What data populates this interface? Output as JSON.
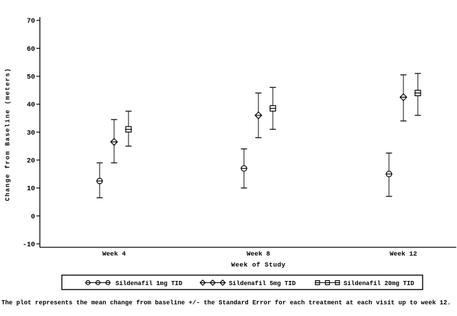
{
  "caption": "The plot represents the mean change from baseline +/- the Standard Error for each treatment at each visit up to week 12.",
  "colors": {
    "background": "#ffffff",
    "axis": "#000000",
    "marker_stroke": "#000000",
    "marker_fill": "#ffffff",
    "error_line": "#6e6e6e",
    "error_cap": "#1a1a1a",
    "legend_border": "#000000"
  },
  "chart_data": {
    "type": "scatter",
    "subtype": "errorbar-dotplot",
    "title": "",
    "xlabel": "Week of Study",
    "ylabel": "Change from Baseline (meters)",
    "categories": [
      "Week 4",
      "Week 8",
      "Week 12"
    ],
    "ylim": [
      -10,
      70
    ],
    "yticks": [
      -10,
      0,
      10,
      20,
      30,
      40,
      50,
      60,
      70
    ],
    "grid": false,
    "legend_position": "bottom",
    "error_bar_meaning": "mean +/- Standard Error",
    "series": [
      {
        "name": "Sildenafil 1mg TID",
        "marker": "circle",
        "means": [
          12.5,
          17.0,
          15.0
        ],
        "upper": [
          19.0,
          24.0,
          22.5
        ],
        "lower": [
          6.5,
          10.0,
          7.0
        ]
      },
      {
        "name": "Sildenafil 5mg TID",
        "marker": "diamond",
        "means": [
          26.5,
          36.0,
          42.5
        ],
        "upper": [
          34.5,
          44.0,
          50.5
        ],
        "lower": [
          19.0,
          28.0,
          34.0
        ]
      },
      {
        "name": "Sildenafil 20mg TID",
        "marker": "square",
        "means": [
          31.0,
          38.5,
          44.0
        ],
        "upper": [
          37.5,
          46.0,
          51.0
        ],
        "lower": [
          25.0,
          31.0,
          36.0
        ]
      }
    ]
  }
}
